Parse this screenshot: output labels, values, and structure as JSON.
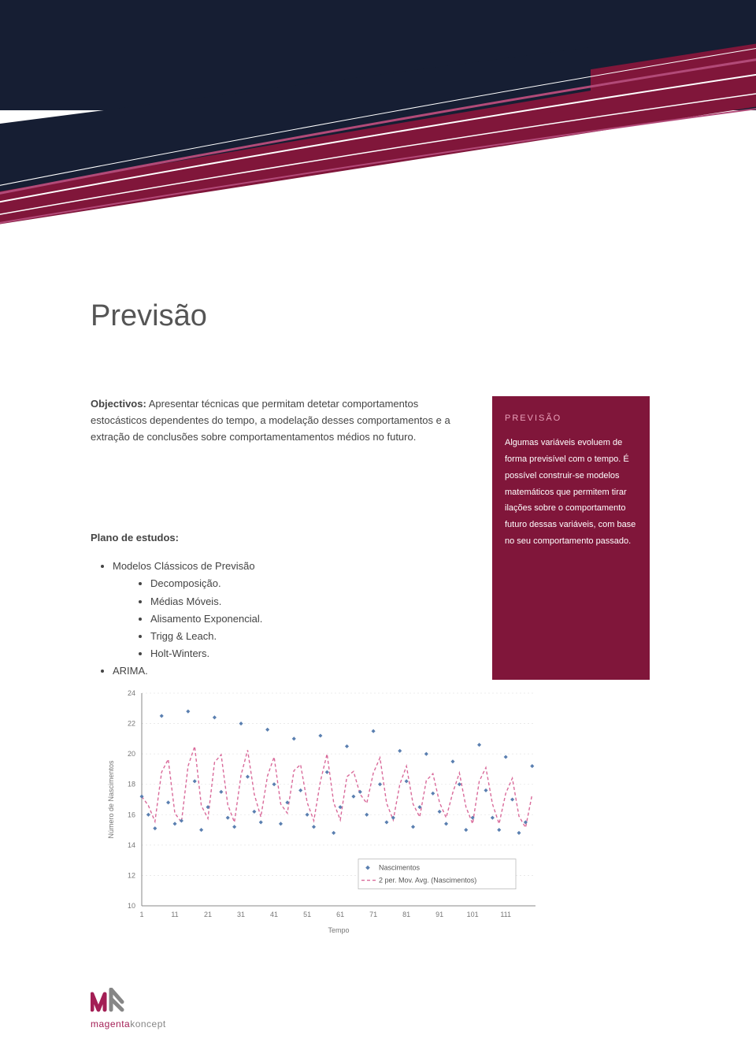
{
  "header": {
    "band_color": "#161e33",
    "accent_color": "#80163a",
    "line_color_light": "#ffffff",
    "line_color_accent": "#b24a78"
  },
  "title": "Previsão",
  "objectivos": {
    "label": "Objectivos:",
    "text": "Apresentar técnicas que permitam detetar comportamentos estocásticos dependentes do tempo, a modelação desses comportamentos e a extração de conclusões sobre comportamentamentos médios no futuro."
  },
  "plano": {
    "label": "Plano de estudos:",
    "items": [
      {
        "label": "Modelos Clássicos de Previsão",
        "children": [
          "Decomposição.",
          "Médias Móveis.",
          "Alisamento Exponencial.",
          "Trigg & Leach.",
          "Holt-Winters."
        ]
      },
      {
        "label": "ARIMA."
      }
    ]
  },
  "sidebar": {
    "title": "PREVISÃO",
    "body": "Algumas variáveis evoluem de forma previsível com o tempo. É possível construir-se modelos matemáticos que permitem tirar ilações sobre o comportamento futuro dessas variáveis, com base no seu comportamento passado.",
    "bg_color": "#80163a",
    "title_color": "#e8a0b9"
  },
  "chart": {
    "type": "scatter-with-moving-average",
    "x_label": "Tempo",
    "y_label": "Número de Nascimentos",
    "x_ticks": [
      1,
      11,
      21,
      31,
      41,
      51,
      61,
      71,
      81,
      91,
      101,
      111
    ],
    "y_ticks": [
      10,
      12,
      14,
      16,
      18,
      20,
      22,
      24
    ],
    "ylim": [
      10,
      24
    ],
    "xlim": [
      1,
      120
    ],
    "point_color": "#5a7fb0",
    "line_color": "#d96a9a",
    "line_dash": "4 3",
    "grid_color": "#e6e6e6",
    "axis_color": "#888888",
    "label_color": "#777777",
    "label_fontsize": 9,
    "tick_fontsize": 9,
    "legend": {
      "items": [
        {
          "label": "Nascimentos",
          "type": "point",
          "color": "#5a7fb0"
        },
        {
          "label": "2 per. Mov. Avg. (Nascimentos)",
          "type": "line",
          "color": "#d96a9a"
        }
      ],
      "border_color": "#bbbbbb"
    },
    "series": {
      "x": [
        1,
        3,
        5,
        7,
        9,
        11,
        13,
        15,
        17,
        19,
        21,
        23,
        25,
        27,
        29,
        31,
        33,
        35,
        37,
        39,
        41,
        43,
        45,
        47,
        49,
        51,
        53,
        55,
        57,
        59,
        61,
        63,
        65,
        67,
        69,
        71,
        73,
        75,
        77,
        79,
        81,
        83,
        85,
        87,
        89,
        91,
        93,
        95,
        97,
        99,
        101,
        103,
        105,
        107,
        109,
        111,
        113,
        115,
        117,
        119
      ],
      "y": [
        17.2,
        16.0,
        15.1,
        22.5,
        16.8,
        15.4,
        15.6,
        22.8,
        18.2,
        15.0,
        16.5,
        22.4,
        17.5,
        15.8,
        15.2,
        22.0,
        18.5,
        16.2,
        15.5,
        21.6,
        18.0,
        15.4,
        16.8,
        21.0,
        17.6,
        16.0,
        15.2,
        21.2,
        18.8,
        14.8,
        16.5,
        20.5,
        17.2,
        17.5,
        16.0,
        21.5,
        18.0,
        15.5,
        15.8,
        20.2,
        18.2,
        15.2,
        16.5,
        20.0,
        17.4,
        16.2,
        15.4,
        19.5,
        18.0,
        15.0,
        15.8,
        20.6,
        17.6,
        15.8,
        15.0,
        19.8,
        17.0,
        14.8,
        15.5,
        19.2
      ]
    }
  },
  "logo": {
    "word": "magentakoncept",
    "accent": "#a31e55",
    "gray": "#868686"
  }
}
